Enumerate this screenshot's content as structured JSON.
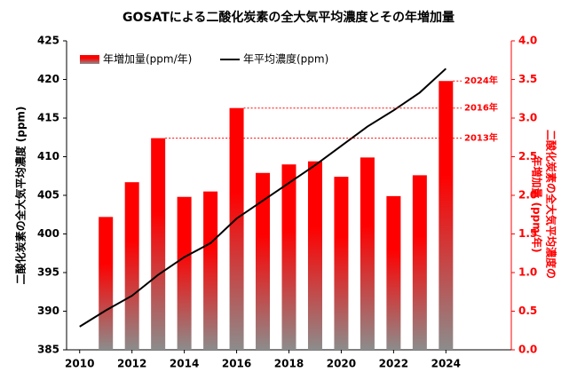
{
  "chart_data": {
    "type": "bar",
    "title": "GOSATによる二酸化炭素の全大気平均濃度とその年増加量",
    "ylabel": "二酸化炭素の全大気平均濃度 (ppm)",
    "y2label": [
      "二酸化炭素の全大気平均濃度の",
      "年増加量 (ppm/年)"
    ],
    "xlim": [
      2009.5,
      2026.5
    ],
    "xticks": [
      2010,
      2012,
      2014,
      2016,
      2018,
      2020,
      2022,
      2024
    ],
    "ylim": [
      385,
      425
    ],
    "yticks": [
      385,
      390,
      395,
      400,
      405,
      410,
      415,
      420,
      425
    ],
    "y2lim": [
      0,
      4
    ],
    "y2ticks": [
      {
        "value": 0,
        "label": "0.0"
      },
      0.5,
      {
        "value": 1,
        "label": "1.0"
      },
      1.5,
      {
        "value": 2,
        "label": "2.0"
      },
      2.5,
      {
        "value": 3,
        "label": "3.0"
      },
      3.5,
      {
        "value": 4,
        "label": "4.0"
      }
    ],
    "grid": false,
    "legend": "upper left",
    "series": [
      {
        "name": "年増加量(ppm/年)",
        "type": "bar",
        "axis": "y2",
        "color": "#ff0000",
        "x": [
          2011,
          2012,
          2013,
          2014,
          2015,
          2016,
          2017,
          2018,
          2019,
          2020,
          2021,
          2022,
          2023,
          2024
        ],
        "values": [
          1.72,
          2.17,
          2.74,
          1.98,
          2.05,
          3.13,
          2.29,
          2.4,
          2.44,
          2.24,
          2.49,
          1.99,
          2.26,
          3.48
        ]
      },
      {
        "name": "年平均濃度(ppm)",
        "type": "line",
        "color": "#000000",
        "x": [
          2010,
          2011,
          2012,
          2013,
          2014,
          2015,
          2016,
          2017,
          2018,
          2019,
          2020,
          2021,
          2022,
          2023,
          2024
        ],
        "values": [
          388.0,
          390.1,
          392.0,
          394.7,
          397.0,
          398.8,
          402.0,
          404.3,
          406.6,
          408.9,
          411.4,
          413.9,
          416.0,
          418.3,
          421.4
        ]
      }
    ],
    "annotations": [
      {
        "text": "2024年",
        "x": 2024
      },
      {
        "text": "2016年",
        "x": 2016
      },
      {
        "text": "2013年",
        "x": 2013
      }
    ]
  }
}
